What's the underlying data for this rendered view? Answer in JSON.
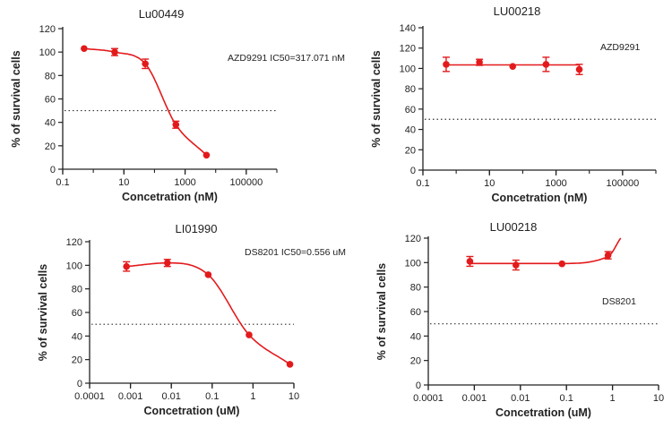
{
  "colors": {
    "series": "#e31a1c",
    "axis": "#222222",
    "reference": "#333333"
  },
  "chart_data": [
    {
      "type": "scatter",
      "title": "Lu00449",
      "annotation": "AZD9291 IC50=317.071 nM",
      "xlabel": "Concetration (nM)",
      "ylabel": "% of survival cells",
      "xscale": "log",
      "xlim": [
        0.1,
        1000000
      ],
      "ylim": [
        0,
        120
      ],
      "xticks": [
        0.1,
        10,
        1000,
        100000
      ],
      "xtick_labels": [
        "0.1",
        "10",
        "1000",
        "100000"
      ],
      "yticks": [
        0,
        20,
        40,
        60,
        80,
        100,
        120
      ],
      "ytick_labels": [
        "0",
        "20",
        "40",
        "60",
        "80",
        "100",
        "120"
      ],
      "reference_line_y": 50,
      "points": [
        {
          "x": 0.5,
          "y": 103,
          "err": 0
        },
        {
          "x": 5,
          "y": 100,
          "err": 3
        },
        {
          "x": 50,
          "y": 90,
          "err": 4
        },
        {
          "x": 500,
          "y": 38,
          "err": 3
        },
        {
          "x": 5000,
          "y": 12,
          "err": 0
        }
      ],
      "fit": {
        "x_range": [
          0.5,
          5000
        ]
      }
    },
    {
      "type": "scatter",
      "title": "LU00218",
      "annotation": "AZD9291",
      "xlabel": "Concetration (nM)",
      "ylabel": "% of survival cells",
      "xscale": "log",
      "xlim": [
        0.1,
        1000000
      ],
      "ylim": [
        0,
        140
      ],
      "xticks": [
        0.1,
        10,
        1000,
        100000
      ],
      "xtick_labels": [
        "0.1",
        "10",
        "1000",
        "100000"
      ],
      "yticks": [
        0,
        20,
        40,
        60,
        80,
        100,
        120,
        140
      ],
      "ytick_labels": [
        "0",
        "20",
        "40",
        "60",
        "80",
        "100",
        "120",
        "140"
      ],
      "reference_line_y": 50,
      "points": [
        {
          "x": 0.5,
          "y": 104,
          "err": 7
        },
        {
          "x": 5,
          "y": 106,
          "err": 3
        },
        {
          "x": 50,
          "y": 102,
          "err": 0
        },
        {
          "x": 500,
          "y": 104,
          "err": 7
        },
        {
          "x": 5000,
          "y": 99,
          "err": 5
        }
      ],
      "fit": {
        "x_range": [
          0.5,
          5000
        ]
      }
    },
    {
      "type": "scatter",
      "title": "LI01990",
      "annotation": "DS8201 IC50=0.556 uM",
      "xlabel": "Concetration (uM)",
      "ylabel": "% of survival cells",
      "xscale": "log",
      "xlim": [
        0.0001,
        10
      ],
      "ylim": [
        0,
        120
      ],
      "xticks": [
        0.0001,
        0.001,
        0.01,
        0.1,
        1,
        10
      ],
      "xtick_labels": [
        "0.0001",
        "0.001",
        "0.01",
        "0.1",
        "1",
        "10"
      ],
      "yticks": [
        0,
        20,
        40,
        60,
        80,
        100,
        120
      ],
      "ytick_labels": [
        "0",
        "20",
        "40",
        "60",
        "80",
        "100",
        "120"
      ],
      "reference_line_y": 50,
      "points": [
        {
          "x": 0.0008,
          "y": 99,
          "err": 4
        },
        {
          "x": 0.008,
          "y": 102,
          "err": 3
        },
        {
          "x": 0.08,
          "y": 92,
          "err": 0
        },
        {
          "x": 0.8,
          "y": 41,
          "err": 0
        },
        {
          "x": 8,
          "y": 16,
          "err": 0
        }
      ],
      "fit": {
        "x_range": [
          0.0008,
          8
        ]
      }
    },
    {
      "type": "scatter",
      "title": "LU00218",
      "annotation": "DS8201",
      "xlabel": "Concetration (uM)",
      "ylabel": "% of survival cells",
      "xscale": "log",
      "xlim": [
        0.0001,
        10
      ],
      "ylim": [
        0,
        120
      ],
      "xticks": [
        0.0001,
        0.001,
        0.01,
        0.1,
        1,
        10
      ],
      "xtick_labels": [
        "0.0001",
        "0.001",
        "0.01",
        "0.1",
        "1",
        "10"
      ],
      "yticks": [
        0,
        20,
        40,
        60,
        80,
        100,
        120
      ],
      "ytick_labels": [
        "0",
        "20",
        "40",
        "60",
        "80",
        "100",
        "120"
      ],
      "reference_line_y": 50,
      "points": [
        {
          "x": 0.0008,
          "y": 101,
          "err": 4
        },
        {
          "x": 0.008,
          "y": 98,
          "err": 4
        },
        {
          "x": 0.08,
          "y": 99,
          "err": 0
        },
        {
          "x": 0.8,
          "y": 106,
          "err": 3
        }
      ],
      "fit": {
        "x_range": [
          0.0008,
          1.5
        ]
      }
    }
  ]
}
